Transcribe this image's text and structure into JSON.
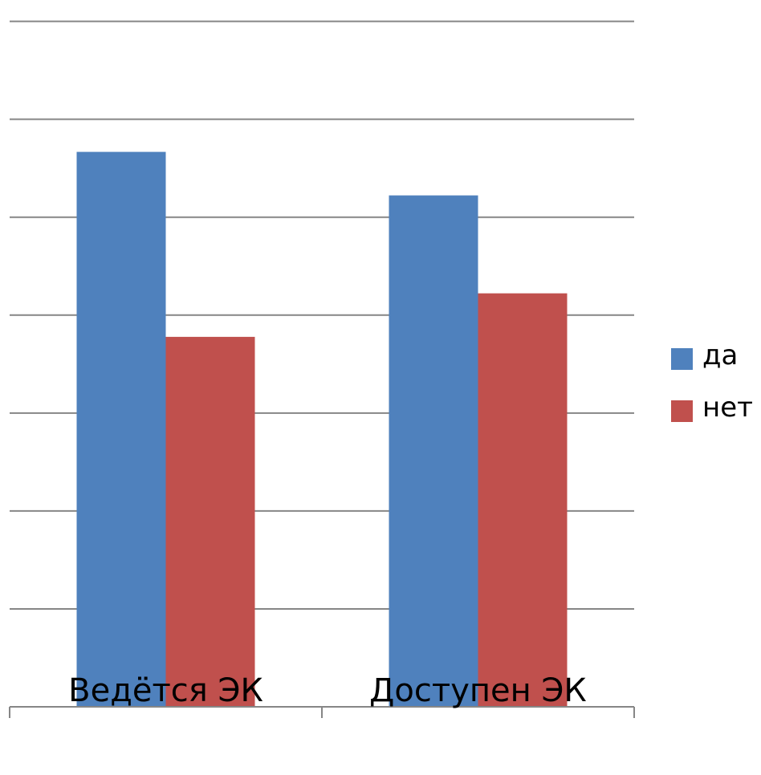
{
  "chart_data": {
    "type": "bar",
    "categories": [
      "Ведётся ЭК",
      "Доступен ЭК"
    ],
    "series": [
      {
        "name": "да",
        "color": "#4F81BD",
        "values": [
          5.1,
          4.7
        ]
      },
      {
        "name": "нет",
        "color": "#C0504D",
        "values": [
          3.4,
          3.8
        ]
      }
    ],
    "ylim": [
      0,
      6.4
    ],
    "grid": true,
    "legend": "right"
  }
}
